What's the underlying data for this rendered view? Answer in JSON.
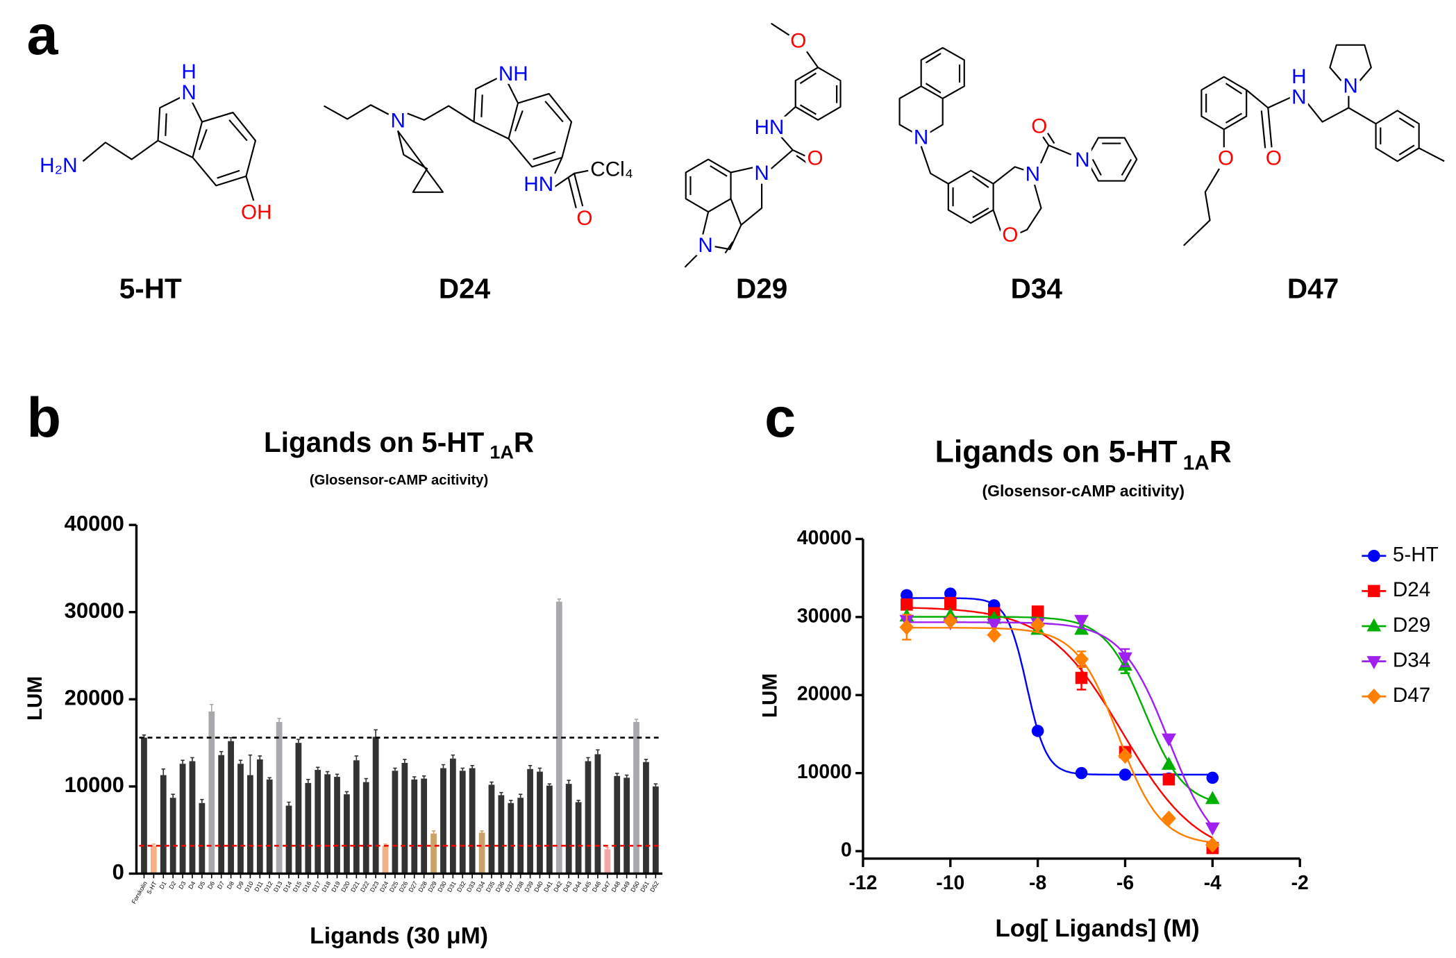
{
  "structures": {
    "panel": "a",
    "molecules": [
      {
        "name": "5-HT",
        "atoms": [
          "H",
          "N",
          "H₂N",
          "OH"
        ]
      },
      {
        "name": "D24",
        "atoms": [
          "NH",
          "N",
          "HN",
          "CCl₄",
          "O"
        ]
      },
      {
        "name": "D29",
        "atoms": [
          "O",
          "HN",
          "O",
          "N",
          "N"
        ]
      },
      {
        "name": "D34",
        "atoms": [
          "N",
          "N",
          "O",
          "N",
          "O"
        ]
      },
      {
        "name": "D47",
        "atoms": [
          "O",
          "O",
          "H",
          "N",
          "N"
        ]
      }
    ]
  },
  "chart_data": [
    {
      "type": "bar",
      "panel": "b",
      "title": "Ligands on 5-HT",
      "title_subscript": "1A",
      "title_suffix": "R",
      "subtitle": "(Glosensor-cAMP acitivity)",
      "xlabel": "Ligands (30 μM)",
      "ylabel": "LUM",
      "categories": [
        "Forskolin",
        "5-HT",
        "D1",
        "D2",
        "D3",
        "D4",
        "D5",
        "D6",
        "D7",
        "D8",
        "D9",
        "D10",
        "D11",
        "D12",
        "D13",
        "D14",
        "D15",
        "D16",
        "D17",
        "D18",
        "D19",
        "D20",
        "D21",
        "D22",
        "D23",
        "D24",
        "D25",
        "D26",
        "D27",
        "D28",
        "D29",
        "D30",
        "D31",
        "D32",
        "D33",
        "D34",
        "D35",
        "D36",
        "D37",
        "D38",
        "D39",
        "D40",
        "D41",
        "D42",
        "D43",
        "D44",
        "D45",
        "D46",
        "D47",
        "D48",
        "D49",
        "D50",
        "D51",
        "D52"
      ],
      "values": [
        15600,
        3200,
        11300,
        8700,
        12600,
        12900,
        8100,
        18600,
        13600,
        15200,
        12600,
        11300,
        13100,
        10800,
        17400,
        7800,
        15000,
        10400,
        11900,
        11400,
        11100,
        9100,
        13000,
        10500,
        15700,
        3200,
        11800,
        12700,
        10800,
        10900,
        4600,
        12100,
        13200,
        11800,
        12100,
        4700,
        10200,
        9000,
        8100,
        8700,
        12000,
        11700,
        10100,
        31200,
        10300,
        8200,
        12900,
        13700,
        2800,
        11200,
        11000,
        17400,
        12800,
        10000
      ],
      "errors": [
        300,
        200,
        700,
        400,
        400,
        400,
        400,
        800,
        400,
        400,
        400,
        2300,
        400,
        200,
        400,
        400,
        400,
        400,
        300,
        300,
        300,
        300,
        500,
        400,
        800,
        200,
        300,
        400,
        300,
        300,
        300,
        400,
        400,
        300,
        300,
        200,
        300,
        300,
        300,
        400,
        400,
        400,
        200,
        300,
        400,
        200,
        400,
        500,
        200,
        300,
        300,
        300,
        300,
        300
      ],
      "colors": [
        "#333333",
        "#f4b183",
        "#333333",
        "#333333",
        "#333333",
        "#333333",
        "#333333",
        "#a8a8ad",
        "#333333",
        "#333333",
        "#333333",
        "#333333",
        "#333333",
        "#333333",
        "#a8a8ad",
        "#333333",
        "#333333",
        "#333333",
        "#333333",
        "#333333",
        "#333333",
        "#333333",
        "#333333",
        "#333333",
        "#333333",
        "#f4b183",
        "#333333",
        "#333333",
        "#333333",
        "#333333",
        "#c9a36a",
        "#333333",
        "#333333",
        "#333333",
        "#333333",
        "#c9a36a",
        "#333333",
        "#333333",
        "#333333",
        "#333333",
        "#333333",
        "#333333",
        "#333333",
        "#a8a8ad",
        "#333333",
        "#333333",
        "#333333",
        "#333333",
        "#f4a8a8",
        "#333333",
        "#333333",
        "#a8a8ad",
        "#333333",
        "#333333"
      ],
      "reference_lines": [
        {
          "value": 15600,
          "color": "#000000"
        },
        {
          "value": 3200,
          "color": "#ff0000"
        }
      ],
      "ylim": [
        0,
        40000
      ],
      "yticks": [
        0,
        10000,
        20000,
        30000,
        40000
      ]
    },
    {
      "type": "scatter",
      "panel": "c",
      "title": "Ligands on 5-HT",
      "title_subscript": "1A",
      "title_suffix": "R",
      "subtitle": "(Glosensor-cAMP acitivity)",
      "xlabel": "Log[ Ligands] (M)",
      "ylabel": "LUM",
      "x": [
        -11,
        -10,
        -9,
        -8,
        -7,
        -6,
        -5,
        -4
      ],
      "series": [
        {
          "name": "5-HT",
          "color": "#0000ff",
          "marker": "circle",
          "values": [
            32800,
            33000,
            31500,
            15400,
            10000,
            9800,
            9300,
            9400
          ],
          "errors": [
            null,
            null,
            null,
            null,
            null,
            null,
            null,
            null
          ]
        },
        {
          "name": "D24",
          "color": "#ff0000",
          "marker": "square",
          "values": [
            31600,
            31800,
            30500,
            30700,
            22200,
            12700,
            9200,
            400
          ],
          "errors": [
            null,
            null,
            null,
            null,
            1500,
            600,
            null,
            null
          ]
        },
        {
          "name": "D29",
          "color": "#00b000",
          "marker": "triangle",
          "values": [
            30100,
            30200,
            29800,
            28400,
            28400,
            23800,
            11100,
            6700
          ],
          "errors": [
            null,
            null,
            null,
            null,
            null,
            1000,
            null,
            null
          ]
        },
        {
          "name": "D34",
          "color": "#a020f0",
          "marker": "triangle-down",
          "values": [
            29600,
            29300,
            29100,
            29200,
            29600,
            24800,
            14400,
            3000
          ],
          "errors": [
            null,
            null,
            null,
            null,
            null,
            1100,
            null,
            null
          ]
        },
        {
          "name": "D47",
          "color": "#ff7f00",
          "marker": "diamond",
          "values": [
            28700,
            29500,
            27700,
            29000,
            24600,
            12200,
            4200,
            800
          ],
          "errors": [
            1600,
            null,
            null,
            null,
            1000,
            null,
            null,
            null
          ]
        }
      ],
      "xlim": [
        -12,
        -2
      ],
      "xticks": [
        -12,
        -10,
        -8,
        -6,
        -4,
        -2
      ],
      "ylim": [
        0,
        40000
      ],
      "yticks": [
        0,
        10000,
        20000,
        30000,
        40000
      ],
      "legend": "right"
    }
  ]
}
